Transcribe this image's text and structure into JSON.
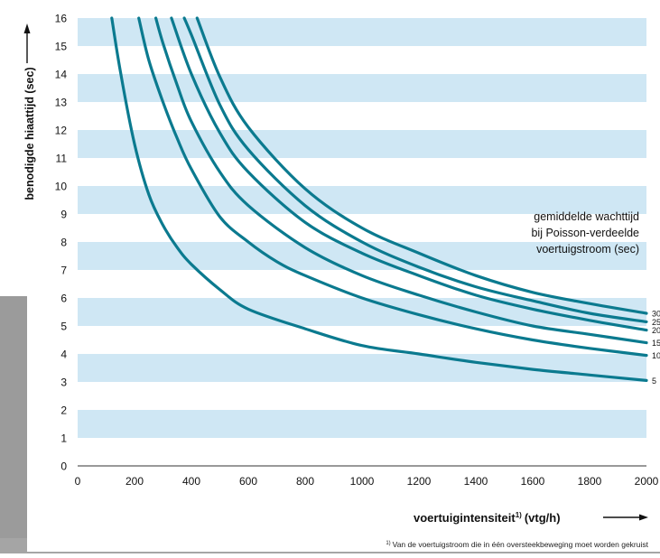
{
  "colors": {
    "band_light": "#cfe7f4",
    "band_white": "#ffffff",
    "curve": "#0b7a8f",
    "text": "#111111",
    "photo_bg": "#9a9a9a"
  },
  "chart_data": {
    "type": "line",
    "title": "",
    "xlabel": "voertuigintensiteit",
    "xlabel_super": "1)",
    "xlabel_unit": "(vtg/h)",
    "ylabel": "benodigde hiaattijd (sec)",
    "legend_title": [
      "gemiddelde wachttijd",
      "bij Poisson-verdeelde",
      "voertuigstroom (sec)"
    ],
    "footnote_mark": "1)",
    "footnote": "Van de voertuigstroom die in één oversteekbeweging moet worden gekruist",
    "xlim": [
      0,
      2000
    ],
    "ylim": [
      0,
      16
    ],
    "x_ticks": [
      "0",
      "200",
      "400",
      "600",
      "800",
      "1000",
      "1200",
      "1400",
      "1600",
      "1800",
      "2000"
    ],
    "y_ticks": [
      "0",
      "1",
      "2",
      "3",
      "4",
      "5",
      "6",
      "7",
      "8",
      "9",
      "10",
      "11",
      "12",
      "13",
      "14",
      "15",
      "16"
    ],
    "grid": "horizontal bands",
    "series": [
      {
        "name": "5",
        "x": [
          120,
          150,
          200,
          250,
          300,
          350,
          400,
          500,
          600,
          800,
          1000,
          1200,
          1400,
          1600,
          1800,
          2000
        ],
        "y": [
          16,
          14.1,
          11.5,
          9.7,
          8.6,
          7.8,
          7.2,
          6.3,
          5.6,
          4.9,
          4.3,
          4.0,
          3.7,
          3.45,
          3.25,
          3.05
        ]
      },
      {
        "name": "10",
        "x": [
          215,
          250,
          300,
          350,
          400,
          500,
          600,
          700,
          800,
          1000,
          1200,
          1400,
          1600,
          1800,
          2000
        ],
        "y": [
          16,
          14.5,
          13.0,
          11.7,
          10.6,
          8.9,
          8.0,
          7.3,
          6.8,
          6.0,
          5.4,
          4.9,
          4.5,
          4.2,
          3.95
        ]
      },
      {
        "name": "15",
        "x": [
          275,
          300,
          350,
          400,
          500,
          600,
          800,
          1000,
          1200,
          1400,
          1600,
          1800,
          2000
        ],
        "y": [
          16,
          15.1,
          13.6,
          12.3,
          10.5,
          9.3,
          7.8,
          6.8,
          6.1,
          5.5,
          5.0,
          4.7,
          4.4
        ]
      },
      {
        "name": "20",
        "x": [
          330,
          400,
          500,
          600,
          800,
          1000,
          1200,
          1400,
          1600,
          1800,
          2000
        ],
        "y": [
          16,
          14.0,
          11.9,
          10.5,
          8.7,
          7.6,
          6.8,
          6.1,
          5.6,
          5.2,
          4.85
        ]
      },
      {
        "name": "25",
        "x": [
          375,
          400,
          500,
          600,
          800,
          1000,
          1200,
          1400,
          1600,
          1800,
          2000
        ],
        "y": [
          16,
          15.4,
          12.9,
          11.3,
          9.3,
          8.0,
          7.1,
          6.4,
          5.9,
          5.45,
          5.15
        ]
      },
      {
        "name": "30",
        "x": [
          420,
          500,
          600,
          800,
          1000,
          1200,
          1400,
          1600,
          1800,
          2000
        ],
        "y": [
          16,
          13.9,
          12.1,
          9.9,
          8.5,
          7.6,
          6.8,
          6.2,
          5.8,
          5.45
        ]
      }
    ]
  }
}
